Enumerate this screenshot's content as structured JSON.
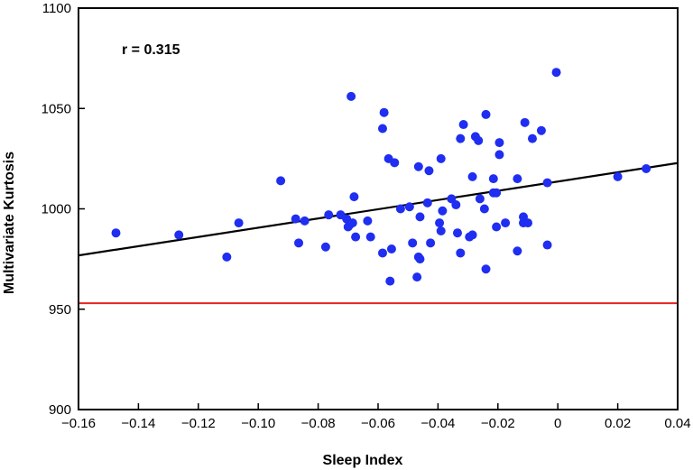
{
  "chart_data": {
    "type": "scatter",
    "xlabel": "Sleep Index",
    "ylabel": "Multivariate Kurtosis",
    "annotation": "r = 0.315",
    "xlim": [
      -0.16,
      0.04
    ],
    "ylim": [
      900,
      1100
    ],
    "x_ticks": [
      -0.16,
      -0.14,
      -0.12,
      -0.1,
      -0.08,
      -0.06,
      -0.04,
      -0.02,
      0,
      0.02,
      0.04
    ],
    "x_tick_labels": [
      "−0.16",
      "−0.14",
      "−0.12",
      "−0.10",
      "−0.08",
      "−0.06",
      "−0.04",
      "−0.02",
      "0",
      "0.02",
      "0.04"
    ],
    "y_ticks": [
      900,
      950,
      1000,
      1050,
      1100
    ],
    "y_tick_labels": [
      "900",
      "950",
      "1000",
      "1050",
      "1100"
    ],
    "grid": false,
    "point_color": "#1f2ef0",
    "points": [
      [
        -0.1475,
        988
      ],
      [
        -0.1265,
        987
      ],
      [
        -0.1105,
        976
      ],
      [
        -0.1065,
        993
      ],
      [
        -0.0925,
        1014
      ],
      [
        -0.0875,
        995
      ],
      [
        -0.0865,
        983
      ],
      [
        -0.0845,
        994
      ],
      [
        -0.0775,
        981
      ],
      [
        -0.0765,
        997
      ],
      [
        -0.0725,
        997
      ],
      [
        -0.0705,
        995
      ],
      [
        -0.0695,
        992
      ],
      [
        -0.07,
        991
      ],
      [
        -0.0685,
        993
      ],
      [
        -0.068,
        1006
      ],
      [
        -0.0675,
        986
      ],
      [
        -0.069,
        1056
      ],
      [
        -0.0635,
        994
      ],
      [
        -0.0625,
        986
      ],
      [
        -0.0585,
        978
      ],
      [
        -0.0585,
        1040
      ],
      [
        -0.058,
        1048
      ],
      [
        -0.0565,
        1025
      ],
      [
        -0.0555,
        980
      ],
      [
        -0.056,
        964
      ],
      [
        -0.0545,
        1023
      ],
      [
        -0.0525,
        1000
      ],
      [
        -0.0495,
        1001
      ],
      [
        -0.0485,
        983
      ],
      [
        -0.0465,
        1021
      ],
      [
        -0.0465,
        976
      ],
      [
        -0.046,
        975
      ],
      [
        -0.046,
        996
      ],
      [
        -0.047,
        966
      ],
      [
        -0.043,
        1019
      ],
      [
        -0.0435,
        1003
      ],
      [
        -0.0425,
        983
      ],
      [
        -0.0395,
        993
      ],
      [
        -0.039,
        989
      ],
      [
        -0.0385,
        999
      ],
      [
        -0.039,
        1025
      ],
      [
        -0.0355,
        1005
      ],
      [
        -0.034,
        1002
      ],
      [
        -0.0335,
        988
      ],
      [
        -0.0325,
        978
      ],
      [
        -0.0325,
        1035
      ],
      [
        -0.0315,
        1042
      ],
      [
        -0.0295,
        986
      ],
      [
        -0.0285,
        1016
      ],
      [
        -0.0285,
        987
      ],
      [
        -0.0275,
        1036
      ],
      [
        -0.0265,
        1034
      ],
      [
        -0.026,
        1005
      ],
      [
        -0.0245,
        1000
      ],
      [
        -0.024,
        1047
      ],
      [
        -0.024,
        970
      ],
      [
        -0.0215,
        1015
      ],
      [
        -0.0215,
        1008
      ],
      [
        -0.0205,
        991
      ],
      [
        -0.0205,
        1008
      ],
      [
        -0.0195,
        1033
      ],
      [
        -0.0195,
        1027
      ],
      [
        -0.0175,
        993
      ],
      [
        -0.0135,
        1015
      ],
      [
        -0.0135,
        979
      ],
      [
        -0.0115,
        996
      ],
      [
        -0.0115,
        993
      ],
      [
        -0.011,
        1043
      ],
      [
        -0.01,
        993
      ],
      [
        -0.0085,
        1035
      ],
      [
        -0.0055,
        1039
      ],
      [
        -0.0035,
        1013
      ],
      [
        -0.0035,
        982
      ],
      [
        -0.0005,
        1068
      ],
      [
        0.02,
        1016
      ],
      [
        0.0295,
        1020
      ]
    ],
    "fit_line": {
      "color": "#000000",
      "x": [
        -0.16,
        0.04
      ],
      "y": [
        976.8,
        1022.8
      ]
    },
    "reference_line": {
      "color": "#e8241c",
      "y": 953
    }
  }
}
